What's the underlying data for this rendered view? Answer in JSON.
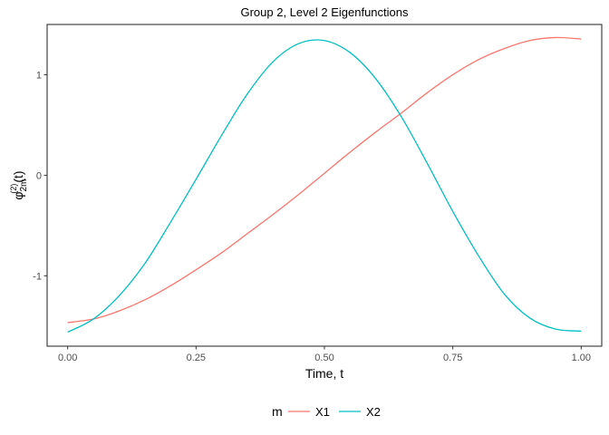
{
  "chart_data": {
    "type": "line",
    "title": "Group 2, Level 2 Eigenfunctions",
    "xlabel": "Time, t",
    "ylabel": {
      "symbol": "φ",
      "subscript": "2m",
      "superscript": "(2)",
      "argument": "(t)"
    },
    "xlim": [
      -0.04,
      1.04
    ],
    "ylim": [
      -1.7,
      1.5
    ],
    "xticks": [
      0.0,
      0.25,
      0.5,
      0.75,
      1.0
    ],
    "xtick_labels": [
      "0.00",
      "0.25",
      "0.50",
      "0.75",
      "1.00"
    ],
    "yticks": [
      -1,
      0,
      1
    ],
    "ytick_labels": [
      "-1",
      "0",
      "1"
    ],
    "legend": {
      "title": "m",
      "position": "bottom"
    },
    "series": [
      {
        "name": "X1",
        "color": "#F8766D",
        "x": [
          0.0,
          0.05,
          0.1,
          0.15,
          0.2,
          0.25,
          0.3,
          0.35,
          0.4,
          0.45,
          0.5,
          0.55,
          0.6,
          0.65,
          0.7,
          0.75,
          0.8,
          0.85,
          0.9,
          0.95,
          1.0
        ],
        "y": [
          -1.465,
          -1.43,
          -1.35,
          -1.24,
          -1.1,
          -0.94,
          -0.77,
          -0.58,
          -0.39,
          -0.19,
          0.02,
          0.23,
          0.43,
          0.62,
          0.82,
          1.0,
          1.15,
          1.26,
          1.34,
          1.37,
          1.355
        ]
      },
      {
        "name": "X2",
        "color": "#00BFC4",
        "x": [
          0.0,
          0.05,
          0.1,
          0.15,
          0.2,
          0.25,
          0.3,
          0.35,
          0.4,
          0.45,
          0.5,
          0.55,
          0.6,
          0.65,
          0.7,
          0.75,
          0.8,
          0.85,
          0.9,
          0.95,
          1.0
        ],
        "y": [
          -1.56,
          -1.43,
          -1.2,
          -0.88,
          -0.47,
          -0.04,
          0.4,
          0.81,
          1.13,
          1.31,
          1.34,
          1.22,
          0.96,
          0.58,
          0.12,
          -0.36,
          -0.8,
          -1.18,
          -1.42,
          -1.53,
          -1.55
        ]
      }
    ]
  }
}
